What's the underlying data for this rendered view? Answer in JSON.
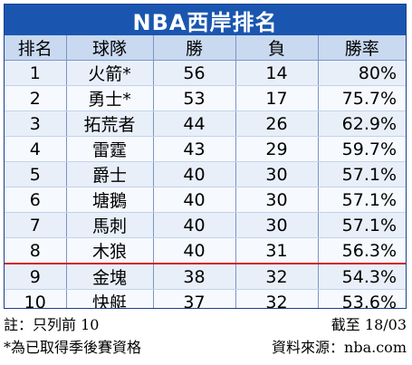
{
  "title": "NBA西岸排名",
  "headers": [
    "排名",
    "球隊",
    "勝",
    "負",
    "勝率"
  ],
  "rows": [
    {
      "rank": "1",
      "team": "火箭*",
      "wins": "56",
      "losses": "14",
      "pct": "80%"
    },
    {
      "rank": "2",
      "team": "勇士*",
      "wins": "53",
      "losses": "17",
      "pct": "75.7%"
    },
    {
      "rank": "3",
      "team": "拓荒者",
      "wins": "44",
      "losses": "26",
      "pct": "62.9%"
    },
    {
      "rank": "4",
      "team": "雷霆",
      "wins": "43",
      "losses": "29",
      "pct": "59.7%"
    },
    {
      "rank": "5",
      "team": "爵士",
      "wins": "40",
      "losses": "30",
      "pct": "57.1%"
    },
    {
      "rank": "6",
      "team": "塘鵝",
      "wins": "40",
      "losses": "30",
      "pct": "57.1%"
    },
    {
      "rank": "7",
      "team": "馬刺",
      "wins": "40",
      "losses": "30",
      "pct": "57.1%"
    },
    {
      "rank": "8",
      "team": "木狼",
      "wins": "40",
      "losses": "31",
      "pct": "56.3%"
    },
    {
      "rank": "9",
      "team": "金塊",
      "wins": "38",
      "losses": "32",
      "pct": "54.3%"
    },
    {
      "rank": "10",
      "team": "快艇",
      "wins": "37",
      "losses": "32",
      "pct": "53.6%"
    }
  ],
  "notes": {
    "note_left": "註：只列前 10",
    "note_right": "截至 18/03",
    "qualified": "*為已取得季後賽資格",
    "source": "資料來源：nba.com"
  },
  "colors": {
    "title_bg": "#1a56b0",
    "header_bg": "#c9d9f0",
    "row_bg": "#e8eff9",
    "cutoff_line": "#d21e2d"
  }
}
